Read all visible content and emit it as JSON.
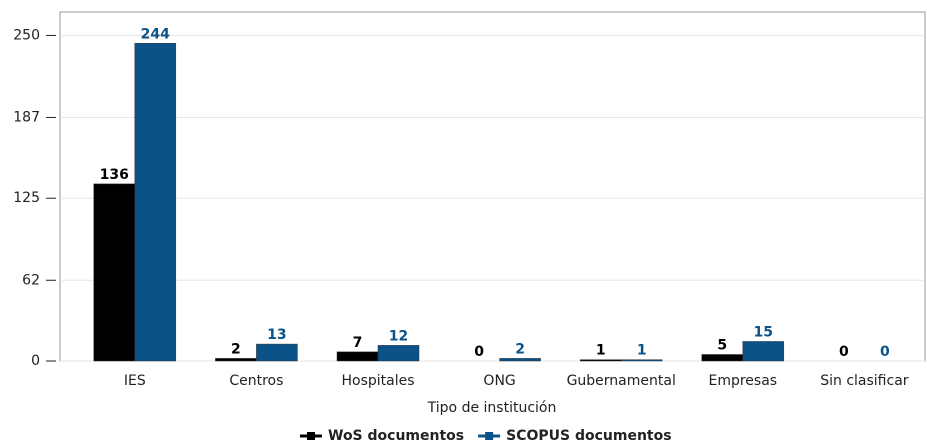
{
  "chart_data": {
    "type": "bar",
    "x_label": "Tipo de institución",
    "categories": [
      "IES",
      "Centros",
      "Hospitales",
      "ONG",
      "Gubernamental",
      "Empresas",
      "Sin clasificar"
    ],
    "series": [
      {
        "name": "WoS documentos",
        "color": "#000000",
        "values": [
          136,
          2,
          7,
          0,
          1,
          5,
          0
        ]
      },
      {
        "name": "SCOPUS documentos",
        "color": "#0b5289",
        "values": [
          244,
          13,
          12,
          2,
          1,
          15,
          0
        ]
      }
    ],
    "ylim": [
      0,
      268
    ],
    "yticks": [
      0,
      62,
      125,
      187,
      250
    ],
    "grid": true,
    "legend": "bottom"
  }
}
